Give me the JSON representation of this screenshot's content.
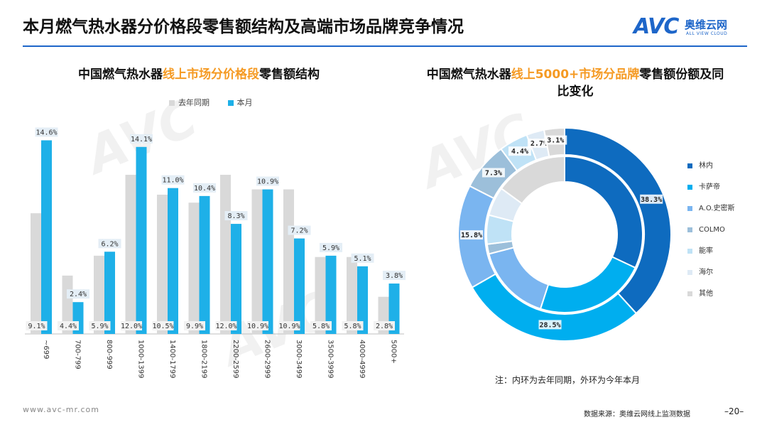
{
  "header": {
    "title": "本月燃气热水器分价格段零售额结构及高端市场品牌竞争情况",
    "logo_mark": "AVC",
    "logo_cn": "奥维云网",
    "logo_en": "ALL VIEW CLOUD",
    "accent_color": "#1e66c9"
  },
  "left": {
    "title_pre": "中国燃气热水器",
    "title_hl": "线上市场分价格段",
    "title_post": "零售额结构"
  },
  "right": {
    "title_pre": "中国燃气热水器",
    "title_hl": "线上5000+市场分品牌",
    "title_post": "零售额份额及同比变化"
  },
  "chart_data": [
    {
      "type": "bar",
      "categories": [
        "~699",
        "700-799",
        "800-999",
        "1000-1399",
        "1400-1799",
        "1800-2199",
        "2200-2599",
        "2600-2999",
        "3000-3499",
        "3500-3999",
        "4000-4999",
        "5000+"
      ],
      "series": [
        {
          "name": "去年同期",
          "color": "#d9d9d9",
          "values": [
            9.1,
            4.4,
            5.9,
            12.0,
            10.5,
            9.9,
            12.0,
            10.9,
            10.9,
            5.8,
            5.8,
            2.8
          ],
          "labels": [
            "9.1%",
            "4.4%",
            "5.9%",
            "12.0%",
            "10.5%",
            "9.9%",
            "12.0%",
            "10.9%",
            "10.9%",
            "5.8%",
            "5.8%",
            "2.8%"
          ]
        },
        {
          "name": "本月",
          "color": "#1eb0e8",
          "values": [
            14.6,
            2.4,
            6.2,
            14.1,
            11.0,
            10.4,
            8.3,
            10.9,
            7.2,
            5.9,
            5.1,
            3.8
          ],
          "labels": [
            "14.6%",
            "2.4%",
            "6.2%",
            "14.1%",
            "11.0%",
            "10.4%",
            "8.3%",
            "10.9%",
            "7.2%",
            "5.9%",
            "5.1%",
            "3.8%"
          ]
        }
      ],
      "legend": "top",
      "grid": false
    },
    {
      "type": "pie",
      "variant": "double-donut",
      "categories": [
        "林内",
        "卡萨帝",
        "A.O.史密斯",
        "COLMO",
        "能率",
        "海尔",
        "其他"
      ],
      "colors": [
        "#0e6bbf",
        "#00aeef",
        "#7ab5f0",
        "#9cbfda",
        "#bfe2f6",
        "#deeaf5",
        "#d9d9d9"
      ],
      "series": [
        {
          "name": "去年同期",
          "ring": "inner",
          "values": [
            32.0,
            23.0,
            16.0,
            2.0,
            6.0,
            6.0,
            15.0
          ]
        },
        {
          "name": "本月",
          "ring": "outer",
          "values": [
            38.3,
            28.5,
            15.8,
            7.3,
            4.4,
            2.7,
            3.1
          ],
          "labels": [
            "38.3%",
            "28.5%",
            "15.8%",
            "7.3%",
            "4.4%",
            "2.7%",
            "3.1%"
          ]
        }
      ],
      "legend": "right"
    }
  ],
  "donut_legend_labels": [
    "林内",
    "卡萨帝",
    "A.O.史密斯",
    "COLMO",
    "能率",
    "海尔",
    "其他"
  ],
  "footnote": "注：内环为去年同期，外环为今年本月",
  "footer": {
    "website": "www.avc-mr.com",
    "source": "数据来源：奥维云网线上监测数据",
    "page": "–20–"
  }
}
